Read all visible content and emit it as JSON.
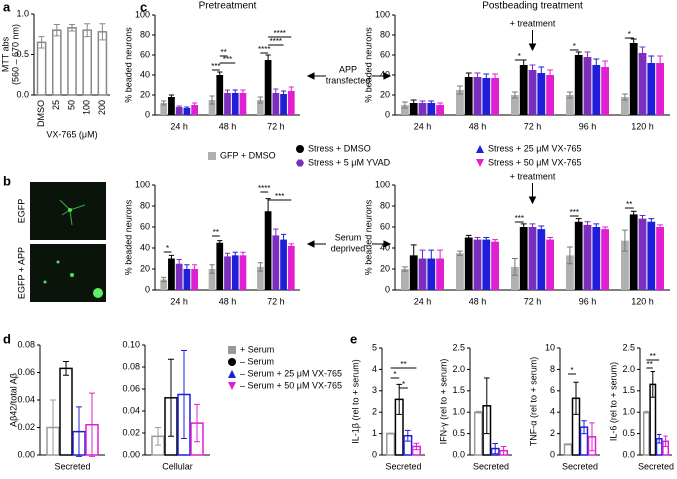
{
  "chart_data": [
    {
      "type": "bar",
      "panel": "a",
      "ylabel": [
        "MTT abs",
        "(560 – 670 nm)"
      ],
      "xlabel": "VX-765 (μM)",
      "categories": [
        "DMSO",
        "25",
        "50",
        "100",
        "200"
      ],
      "bar_style": "outline",
      "series": [
        {
          "color": "#888888",
          "values": [
            0.65,
            0.8,
            0.83,
            0.8,
            0.78
          ],
          "errors": [
            0.07,
            0.07,
            0.04,
            0.08,
            0.1
          ]
        }
      ],
      "ylim": [
        0,
        1
      ],
      "yticks": [
        {
          "value": 0,
          "label": "0.0"
        },
        0.5,
        {
          "value": 1,
          "label": "1.0"
        }
      ]
    },
    {
      "type": "bar",
      "panel": "c",
      "title": "Pretreatment",
      "ylabel": "% beaded neurons",
      "categories": [
        "24 h",
        "48 h",
        "72 h"
      ],
      "bar_style": "filled",
      "legend": true,
      "series": [
        {
          "name": "GFP + DMSO",
          "color": "#b0b0b0",
          "values": [
            12,
            15,
            15
          ],
          "errors": [
            2,
            4,
            3
          ]
        },
        {
          "name": "Stress + DMSO",
          "color": "#000000",
          "values": [
            18,
            40,
            55
          ],
          "errors": [
            2,
            3,
            5
          ]
        },
        {
          "name": "Stress + 5 μM YVAD",
          "color": "#7b2fbf",
          "values": [
            8,
            22,
            22
          ],
          "errors": [
            1,
            3,
            4
          ]
        },
        {
          "name": "Stress + 25 μM VX-765",
          "color": "#1f1fd8",
          "values": [
            7,
            22,
            21
          ],
          "errors": [
            1,
            3,
            3
          ]
        },
        {
          "name": "Stress + 50 μM VX-765",
          "color": "#e020d0",
          "values": [
            10,
            22,
            24
          ],
          "errors": [
            2,
            3,
            4
          ]
        }
      ],
      "ylim": [
        0,
        100
      ],
      "yticks": [
        0,
        20,
        40,
        60,
        80,
        100
      ],
      "annotations": [
        "***",
        "***",
        "**",
        "****",
        "****",
        "****"
      ]
    },
    {
      "type": "bar",
      "title": "Postbeading treatment",
      "ylabel": "% beaded neurons",
      "note": "+ treatment",
      "categories": [
        "24 h",
        "48 h",
        "72 h",
        "96 h",
        "120 h"
      ],
      "bar_style": "filled",
      "series": [
        {
          "color": "#b0b0b0",
          "values": [
            10,
            25,
            20,
            20,
            18
          ],
          "errors": [
            3,
            4,
            3,
            3,
            3
          ]
        },
        {
          "color": "#000000",
          "values": [
            12,
            38,
            50,
            60,
            72
          ],
          "errors": [
            3,
            4,
            5,
            3,
            4
          ]
        },
        {
          "color": "#7b2fbf",
          "values": [
            12,
            38,
            45,
            58,
            62
          ],
          "errors": [
            2,
            4,
            5,
            5,
            6
          ]
        },
        {
          "color": "#1f1fd8",
          "values": [
            12,
            37,
            42,
            50,
            52
          ],
          "errors": [
            2,
            4,
            6,
            6,
            7
          ]
        },
        {
          "color": "#e020d0",
          "values": [
            10,
            37,
            40,
            48,
            52
          ],
          "errors": [
            2,
            4,
            5,
            6,
            7
          ]
        }
      ],
      "ylim": [
        0,
        100
      ],
      "yticks": [
        0,
        20,
        40,
        60,
        80,
        100
      ],
      "annotations": [
        "*",
        "*",
        "*"
      ]
    },
    {
      "type": "bar",
      "ylabel": "% beaded neurons",
      "categories": [
        "24 h",
        "48 h",
        "72 h"
      ],
      "bar_style": "filled",
      "series": [
        {
          "color": "#b0b0b0",
          "values": [
            10,
            20,
            22
          ],
          "errors": [
            2,
            4,
            4
          ]
        },
        {
          "color": "#000000",
          "values": [
            30,
            45,
            75
          ],
          "errors": [
            3,
            2,
            12
          ]
        },
        {
          "color": "#7b2fbf",
          "values": [
            25,
            32,
            52
          ],
          "errors": [
            4,
            3,
            6
          ]
        },
        {
          "color": "#1f1fd8",
          "values": [
            20,
            33,
            48
          ],
          "errors": [
            4,
            3,
            5
          ]
        },
        {
          "color": "#e020d0",
          "values": [
            20,
            33,
            42
          ],
          "errors": [
            4,
            3,
            2
          ]
        }
      ],
      "ylim": [
        0,
        100
      ],
      "yticks": [
        0,
        20,
        40,
        60,
        80,
        100
      ],
      "annotations": [
        "*",
        "**",
        "****",
        "***"
      ]
    },
    {
      "type": "bar",
      "ylabel": "% beaded neurons",
      "note": "+ treatment",
      "categories": [
        "24 h",
        "48 h",
        "72 h",
        "96 h",
        "120 h"
      ],
      "bar_style": "filled",
      "series": [
        {
          "color": "#b0b0b0",
          "values": [
            20,
            35,
            22,
            33,
            47
          ],
          "errors": [
            2,
            2,
            8,
            8,
            10
          ]
        },
        {
          "color": "#000000",
          "values": [
            33,
            50,
            60,
            65,
            72
          ],
          "errors": [
            10,
            2,
            3,
            3,
            3
          ]
        },
        {
          "color": "#7b2fbf",
          "values": [
            30,
            48,
            60,
            62,
            68
          ],
          "errors": [
            8,
            2,
            3,
            3,
            3
          ]
        },
        {
          "color": "#1f1fd8",
          "values": [
            30,
            48,
            58,
            60,
            65
          ],
          "errors": [
            8,
            2,
            3,
            3,
            3
          ]
        },
        {
          "color": "#e020d0",
          "values": [
            30,
            46,
            48,
            58,
            60
          ],
          "errors": [
            8,
            2,
            2,
            2,
            2
          ]
        }
      ],
      "ylim": [
        0,
        100
      ],
      "yticks": [
        0,
        20,
        40,
        60,
        80,
        100
      ],
      "annotations": [
        "***",
        "***",
        "**"
      ]
    },
    {
      "type": "bar",
      "panel": "d",
      "ylabel": "Aβ42/total Aβ",
      "categories": [
        "Secreted"
      ],
      "bar_style": "outline",
      "legend": true,
      "series": [
        {
          "name": "+ Serum",
          "color": "#9a9a9a",
          "values": [
            0.02
          ],
          "errors": [
            0.02
          ]
        },
        {
          "name": "– Serum",
          "color": "#000000",
          "values": [
            0.063
          ],
          "errors": [
            0.005
          ]
        },
        {
          "name": "– Serum + 25 μM VX-765",
          "color": "#1f1fd8",
          "values": [
            0.017
          ],
          "errors": [
            0.018
          ]
        },
        {
          "name": "– Serum + 50 μM VX-765",
          "color": "#e020d0",
          "values": [
            0.022
          ],
          "errors": [
            0.023
          ]
        }
      ],
      "ylim": [
        0,
        0.08
      ],
      "yticks": [
        {
          "value": 0,
          "label": "0.00"
        },
        0.02,
        0.04,
        0.06,
        0.08
      ]
    },
    {
      "type": "bar",
      "categories": [
        "Cellular"
      ],
      "bar_style": "outline",
      "series": [
        {
          "color": "#9a9a9a",
          "values": [
            0.017
          ],
          "errors": [
            0.008
          ]
        },
        {
          "color": "#000000",
          "values": [
            0.052
          ],
          "errors": [
            0.035
          ]
        },
        {
          "color": "#1f1fd8",
          "values": [
            0.055
          ],
          "errors": [
            0.04
          ]
        },
        {
          "color": "#e020d0",
          "values": [
            0.029
          ],
          "errors": [
            0.017
          ]
        }
      ],
      "ylim": [
        0,
        0.1
      ],
      "yticks": [
        {
          "value": 0,
          "label": "0.00"
        },
        0.02,
        0.04,
        0.06,
        0.08,
        {
          "value": 0.1,
          "label": "0.10"
        }
      ]
    },
    {
      "type": "bar",
      "panel": "e",
      "ylabel": "IL-1β (rel to + serum)",
      "categories": [
        "Secreted"
      ],
      "bar_style": "outline",
      "series": [
        {
          "color": "#9a9a9a",
          "values": [
            1
          ],
          "errors": [
            0.02
          ]
        },
        {
          "color": "#000000",
          "values": [
            2.6
          ],
          "errors": [
            0.7
          ]
        },
        {
          "color": "#1f1fd8",
          "values": [
            0.9
          ],
          "errors": [
            0.25
          ]
        },
        {
          "color": "#e020d0",
          "values": [
            0.4
          ],
          "errors": [
            0.15
          ]
        }
      ],
      "ylim": [
        0,
        5
      ],
      "yticks": [
        0,
        1,
        2,
        3,
        4,
        5
      ],
      "annotations": [
        "*",
        "*",
        "**"
      ]
    },
    {
      "type": "bar",
      "ylabel": "IFN-γ (rel to + serum)",
      "categories": [
        "Secreted"
      ],
      "bar_style": "outline",
      "series": [
        {
          "color": "#9a9a9a",
          "values": [
            1
          ],
          "errors": [
            0.02
          ]
        },
        {
          "color": "#000000",
          "values": [
            1.15
          ],
          "errors": [
            0.65
          ]
        },
        {
          "color": "#1f1fd8",
          "values": [
            0.15
          ],
          "errors": [
            0.12
          ]
        },
        {
          "color": "#e020d0",
          "values": [
            0.1
          ],
          "errors": [
            0.1
          ]
        }
      ],
      "ylim": [
        0,
        2.5
      ],
      "yticks": [
        {
          "value": 0,
          "label": "0.0"
        },
        0.5,
        {
          "value": 1,
          "label": "1.0"
        },
        1.5,
        {
          "value": 2,
          "label": "2.0"
        },
        2.5
      ]
    },
    {
      "type": "bar",
      "ylabel": "TNF-α (rel to + serum)",
      "categories": [
        "Secreted"
      ],
      "bar_style": "outline",
      "series": [
        {
          "color": "#9a9a9a",
          "values": [
            1
          ],
          "errors": [
            0.05
          ]
        },
        {
          "color": "#000000",
          "values": [
            5.3
          ],
          "errors": [
            1.5
          ]
        },
        {
          "color": "#1f1fd8",
          "values": [
            2.6
          ],
          "errors": [
            0.6
          ]
        },
        {
          "color": "#e020d0",
          "values": [
            1.7
          ],
          "errors": [
            1.3
          ]
        }
      ],
      "ylim": [
        0,
        10
      ],
      "yticks": [
        0,
        2,
        4,
        6,
        8,
        10
      ],
      "annotations": [
        "*"
      ]
    },
    {
      "type": "bar",
      "ylabel": "IL-6 (rel to + serum)",
      "categories": [
        "Secreted"
      ],
      "bar_style": "outline",
      "series": [
        {
          "color": "#9a9a9a",
          "values": [
            1
          ],
          "errors": [
            0.02
          ]
        },
        {
          "color": "#000000",
          "values": [
            1.65
          ],
          "errors": [
            0.3
          ]
        },
        {
          "color": "#1f1fd8",
          "values": [
            0.38
          ],
          "errors": [
            0.1
          ]
        },
        {
          "color": "#e020d0",
          "values": [
            0.32
          ],
          "errors": [
            0.12
          ]
        }
      ],
      "ylim": [
        0,
        2.5
      ],
      "yticks": [
        {
          "value": 0,
          "label": "0.0"
        },
        0.5,
        {
          "value": 1,
          "label": "1.0"
        },
        1.5,
        {
          "value": 2,
          "label": "2.0"
        },
        2.5
      ],
      "annotations": [
        "**",
        "**"
      ]
    }
  ],
  "figure_notes": [
    [
      "APP",
      "transfected"
    ],
    [
      "Serum",
      "deprived"
    ]
  ],
  "images": {
    "panel": "b",
    "items": [
      {
        "label": "EGFP"
      },
      {
        "label": "EGFP + APP"
      }
    ]
  }
}
